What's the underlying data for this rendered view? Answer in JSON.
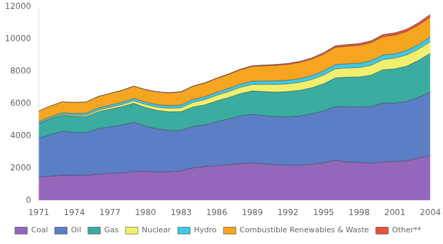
{
  "chart_data": {
    "type": "area",
    "stacked": true,
    "grid": false,
    "legend": "bottom",
    "x": [
      1971,
      1972,
      1973,
      1974,
      1975,
      1976,
      1977,
      1978,
      1979,
      1980,
      1981,
      1982,
      1983,
      1984,
      1985,
      1986,
      1987,
      1988,
      1989,
      1990,
      1991,
      1992,
      1993,
      1994,
      1995,
      1996,
      1997,
      1998,
      1999,
      2000,
      2001,
      2002,
      2003,
      2004
    ],
    "xlim": [
      1971,
      2004
    ],
    "xticks": [
      1971,
      1974,
      1977,
      1980,
      1983,
      1986,
      1989,
      1992,
      1995,
      1998,
      2001,
      2004
    ],
    "ylim": [
      0,
      12000
    ],
    "yticks": [
      0,
      2000,
      4000,
      6000,
      8000,
      10000,
      12000
    ],
    "series": [
      {
        "name": "Coal",
        "color": "#9467bd",
        "values": [
          1449,
          1501,
          1558,
          1564,
          1548,
          1623,
          1672,
          1699,
          1793,
          1806,
          1762,
          1771,
          1836,
          2013,
          2102,
          2143,
          2211,
          2278,
          2323,
          2257,
          2213,
          2183,
          2183,
          2244,
          2323,
          2490,
          2370,
          2357,
          2310,
          2393,
          2402,
          2463,
          2618,
          2778
        ]
      },
      {
        "name": "Oil",
        "color": "#5b7ec5",
        "values": [
          2413,
          2593,
          2732,
          2669,
          2660,
          2821,
          2892,
          2978,
          3055,
          2806,
          2673,
          2582,
          2508,
          2576,
          2578,
          2742,
          2840,
          2967,
          3017,
          3007,
          2985,
          3009,
          3052,
          3125,
          3230,
          3338,
          3438,
          3447,
          3508,
          3666,
          3634,
          3676,
          3785,
          3938
        ]
      },
      {
        "name": "Gas",
        "color": "#3aada0",
        "values": [
          895,
          946,
          979,
          970,
          990,
          1055,
          1094,
          1134,
          1178,
          1151,
          1150,
          1140,
          1165,
          1209,
          1246,
          1287,
          1330,
          1378,
          1450,
          1484,
          1521,
          1558,
          1596,
          1619,
          1683,
          1773,
          1842,
          1855,
          1951,
          2049,
          2125,
          2191,
          2285,
          2419
        ]
      },
      {
        "name": "Nuclear",
        "color": "#f0f06e",
        "values": [
          29,
          40,
          54,
          67,
          83,
          102,
          116,
          130,
          155,
          186,
          201,
          220,
          244,
          282,
          327,
          349,
          368,
          395,
          404,
          448,
          474,
          481,
          494,
          508,
          541,
          564,
          564,
          582,
          609,
          628,
          668,
          690,
          693,
          718
        ]
      },
      {
        "name": "Hydro",
        "color": "#40c8e8",
        "values": [
          104,
          110,
          111,
          116,
          124,
          128,
          130,
          137,
          142,
          148,
          155,
          160,
          165,
          175,
          181,
          186,
          193,
          199,
          204,
          214,
          221,
          222,
          228,
          242,
          251,
          260,
          263,
          271,
          281,
          283,
          262,
          280,
          283,
          290
        ]
      },
      {
        "name": "Combustible Renewables & Waste",
        "color": "#f5a520",
        "values": [
          655,
          669,
          681,
          693,
          700,
          714,
          727,
          743,
          758,
          771,
          782,
          797,
          807,
          824,
          838,
          857,
          875,
          892,
          916,
          937,
          965,
          985,
          1007,
          1028,
          1050,
          1071,
          1089,
          1106,
          1120,
          1141,
          1161,
          1175,
          1202,
          1231
        ]
      },
      {
        "name": "Other**",
        "color": "#e85040",
        "values": [
          5,
          6,
          6,
          7,
          8,
          10,
          11,
          13,
          15,
          17,
          19,
          22,
          24,
          26,
          30,
          34,
          38,
          42,
          47,
          53,
          60,
          67,
          73,
          81,
          89,
          99,
          107,
          115,
          125,
          133,
          142,
          151,
          162,
          175
        ]
      }
    ]
  }
}
